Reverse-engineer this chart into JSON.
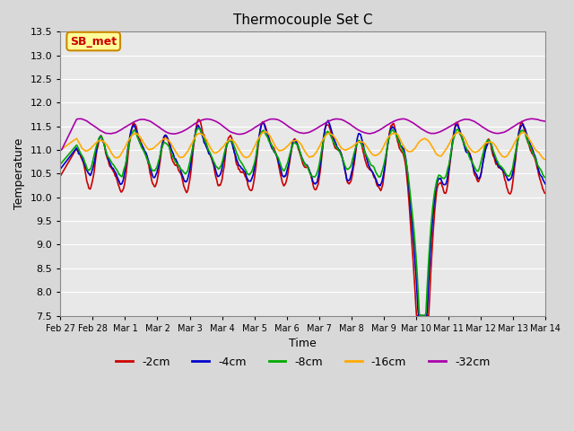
{
  "title": "Thermocouple Set C",
  "xlabel": "Time",
  "ylabel": "Temperature",
  "ylim": [
    7.5,
    13.5
  ],
  "yticks": [
    7.5,
    8.0,
    8.5,
    9.0,
    9.5,
    10.0,
    10.5,
    11.0,
    11.5,
    12.0,
    12.5,
    13.0,
    13.5
  ],
  "bg_color": "#d8d8d8",
  "plot_bg_color": "#e8e8e8",
  "legend_labels": [
    "-2cm",
    "-4cm",
    "-8cm",
    "-16cm",
    "-32cm"
  ],
  "legend_colors": [
    "#cc0000",
    "#0000cc",
    "#00aa00",
    "#ffaa00",
    "#aa00aa"
  ],
  "annotation_text": "SB_met",
  "annotation_color": "#cc0000",
  "annotation_bg": "#ffff99",
  "annotation_border": "#cc8800",
  "x_tick_labels": [
    "Feb 27",
    "Feb 28",
    "Mar 1",
    "Mar 2",
    "Mar 3",
    "Mar 4",
    "Mar 5",
    "Mar 6",
    "Mar 7",
    "Mar 8",
    "Mar 9",
    "Mar 10",
    "Mar 11",
    "Mar 12",
    "Mar 13",
    "Mar 14"
  ],
  "x_tick_positions": [
    0,
    1,
    2,
    3,
    4,
    5,
    6,
    7,
    8,
    9,
    10,
    11,
    12,
    13,
    14,
    15
  ],
  "line_width": 1.2
}
